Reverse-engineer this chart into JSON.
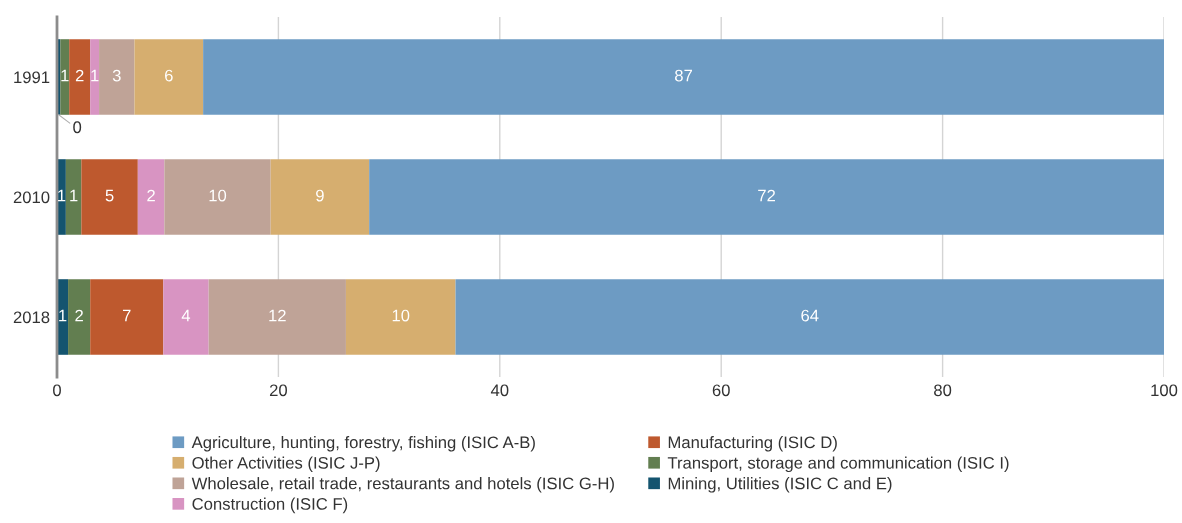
{
  "chart_data": {
    "type": "bar",
    "orientation": "horizontal",
    "stacked": true,
    "categories": [
      "1991",
      "2010",
      "2018"
    ],
    "series": [
      {
        "name": "Mining, Utilities (ISIC C and E)",
        "color": "#14546f",
        "values": [
          0.3,
          0.8,
          1.0
        ],
        "value_labels": [
          "0",
          "1",
          "1"
        ]
      },
      {
        "name": "Transport, storage and communication (ISIC I)",
        "color": "#627e50",
        "values": [
          0.8,
          1.4,
          2.0
        ],
        "value_labels": [
          "1",
          "1",
          "2"
        ]
      },
      {
        "name": "Manufacturing (ISIC D)",
        "color": "#be592e",
        "values": [
          1.9,
          5.1,
          6.6
        ],
        "value_labels": [
          "2",
          "5",
          "7"
        ]
      },
      {
        "name": "Construction (ISIC F)",
        "color": "#d894c2",
        "values": [
          0.8,
          2.4,
          4.1
        ],
        "value_labels": [
          "1",
          "2",
          "4"
        ]
      },
      {
        "name": "Wholesale, retail trade, restaurants and hotels (ISIC G-H)",
        "color": "#bfa397",
        "values": [
          3.2,
          9.6,
          12.4
        ],
        "value_labels": [
          "3",
          "10",
          "12"
        ]
      },
      {
        "name": "Other Activities (ISIC J-P)",
        "color": "#d6ae6f",
        "values": [
          6.2,
          8.9,
          9.9
        ],
        "value_labels": [
          "6",
          "9",
          "10"
        ]
      },
      {
        "name": "Agriculture, hunting, forestry, fishing (ISIC A-B)",
        "color": "#6d9bc3",
        "values": [
          86.8,
          71.8,
          64.0
        ],
        "value_labels": [
          "87",
          "72",
          "64"
        ]
      }
    ],
    "xlim": [
      0,
      100
    ],
    "xticks": [
      0,
      20,
      40,
      60,
      80,
      100
    ],
    "grid": "x",
    "legend": "bottom"
  }
}
